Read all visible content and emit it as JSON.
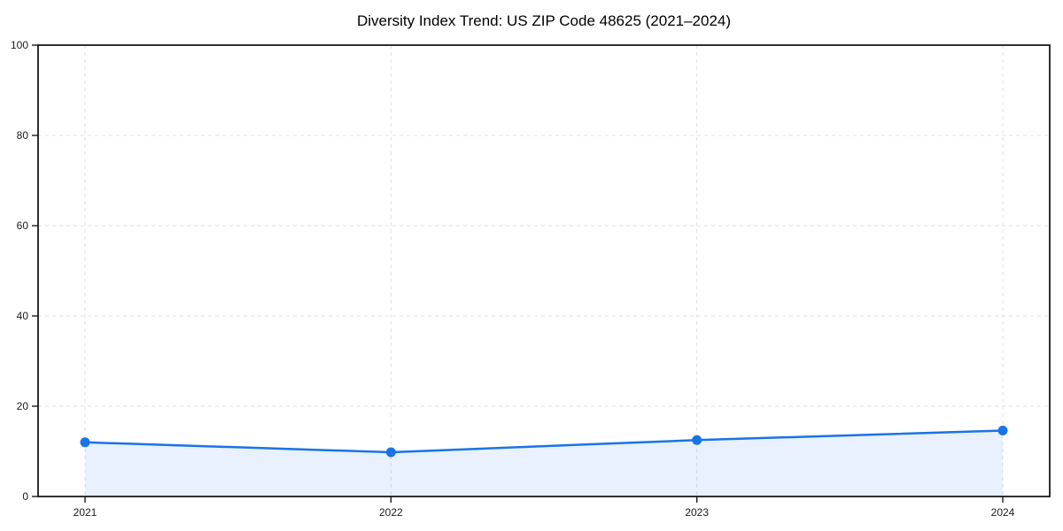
{
  "figure": {
    "background": "#ffffff"
  },
  "chart_data": {
    "type": "area",
    "title": "Diversity Index Trend: US ZIP Code 48625 (2021–2024)",
    "categories": [
      "2021",
      "2022",
      "2023",
      "2024"
    ],
    "values": [
      12.0,
      9.8,
      12.5,
      14.6
    ],
    "xlabel": "",
    "ylabel": "",
    "ylim": [
      0,
      100
    ],
    "yticks": [
      0,
      20,
      40,
      60,
      80,
      100
    ],
    "grid": true,
    "grid_style": "dashed",
    "legend": "none",
    "marker": "circle",
    "colors": {
      "line": "#1a73e8",
      "fill": "rgba(26,115,232,0.10)",
      "grid": "#e0e0e0",
      "spine": "#1a1a1a",
      "tick_label": "#1c1c1c",
      "title": "#000000"
    }
  }
}
